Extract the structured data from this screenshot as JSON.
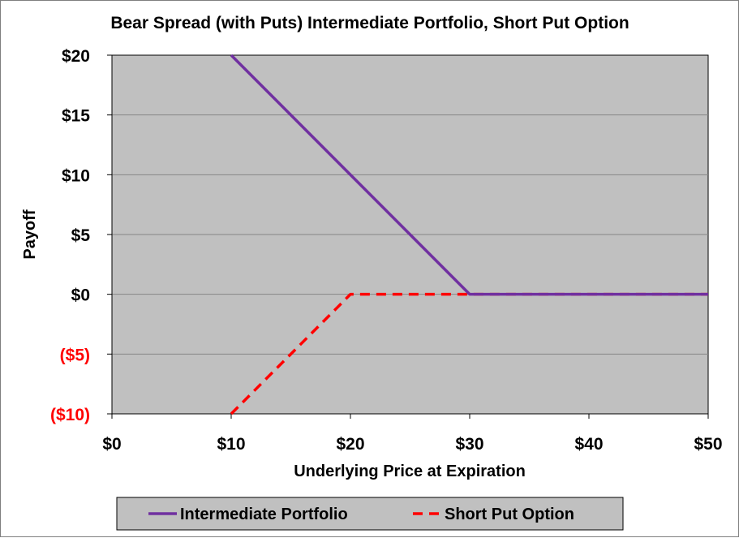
{
  "chart_data": {
    "type": "line",
    "title": "Bear Spread (with Puts) Intermediate Portfolio, Short Put Option",
    "xlabel": "Underlying Price at Expiration",
    "ylabel": "Payoff",
    "xlim": [
      0,
      50
    ],
    "ylim": [
      -10,
      20
    ],
    "x_ticks": [
      0,
      10,
      20,
      30,
      40,
      50
    ],
    "x_tick_labels": [
      "$0",
      "$10",
      "$20",
      "$30",
      "$40",
      "$50"
    ],
    "y_ticks": [
      20,
      15,
      10,
      5,
      0,
      -5,
      -10
    ],
    "y_tick_labels": [
      "$20",
      "$15",
      "$10",
      "$5",
      "$0",
      "($5)",
      "($10)"
    ],
    "grid": true,
    "legend_position": "bottom",
    "series": [
      {
        "name": "Intermediate Portfolio",
        "color": "#7030a0",
        "style": "solid",
        "x": [
          10,
          20,
          30,
          40,
          50
        ],
        "y": [
          20,
          10,
          0,
          0,
          0
        ]
      },
      {
        "name": "Short Put Option",
        "color": "#ff0000",
        "style": "dashed",
        "x": [
          10,
          20,
          30,
          40,
          50
        ],
        "y": [
          -10,
          0,
          0,
          0,
          0
        ]
      }
    ],
    "colors": {
      "plot_background": "#c0c0c0",
      "negative_tick": "#ff0000",
      "positive_tick": "#000000"
    }
  }
}
